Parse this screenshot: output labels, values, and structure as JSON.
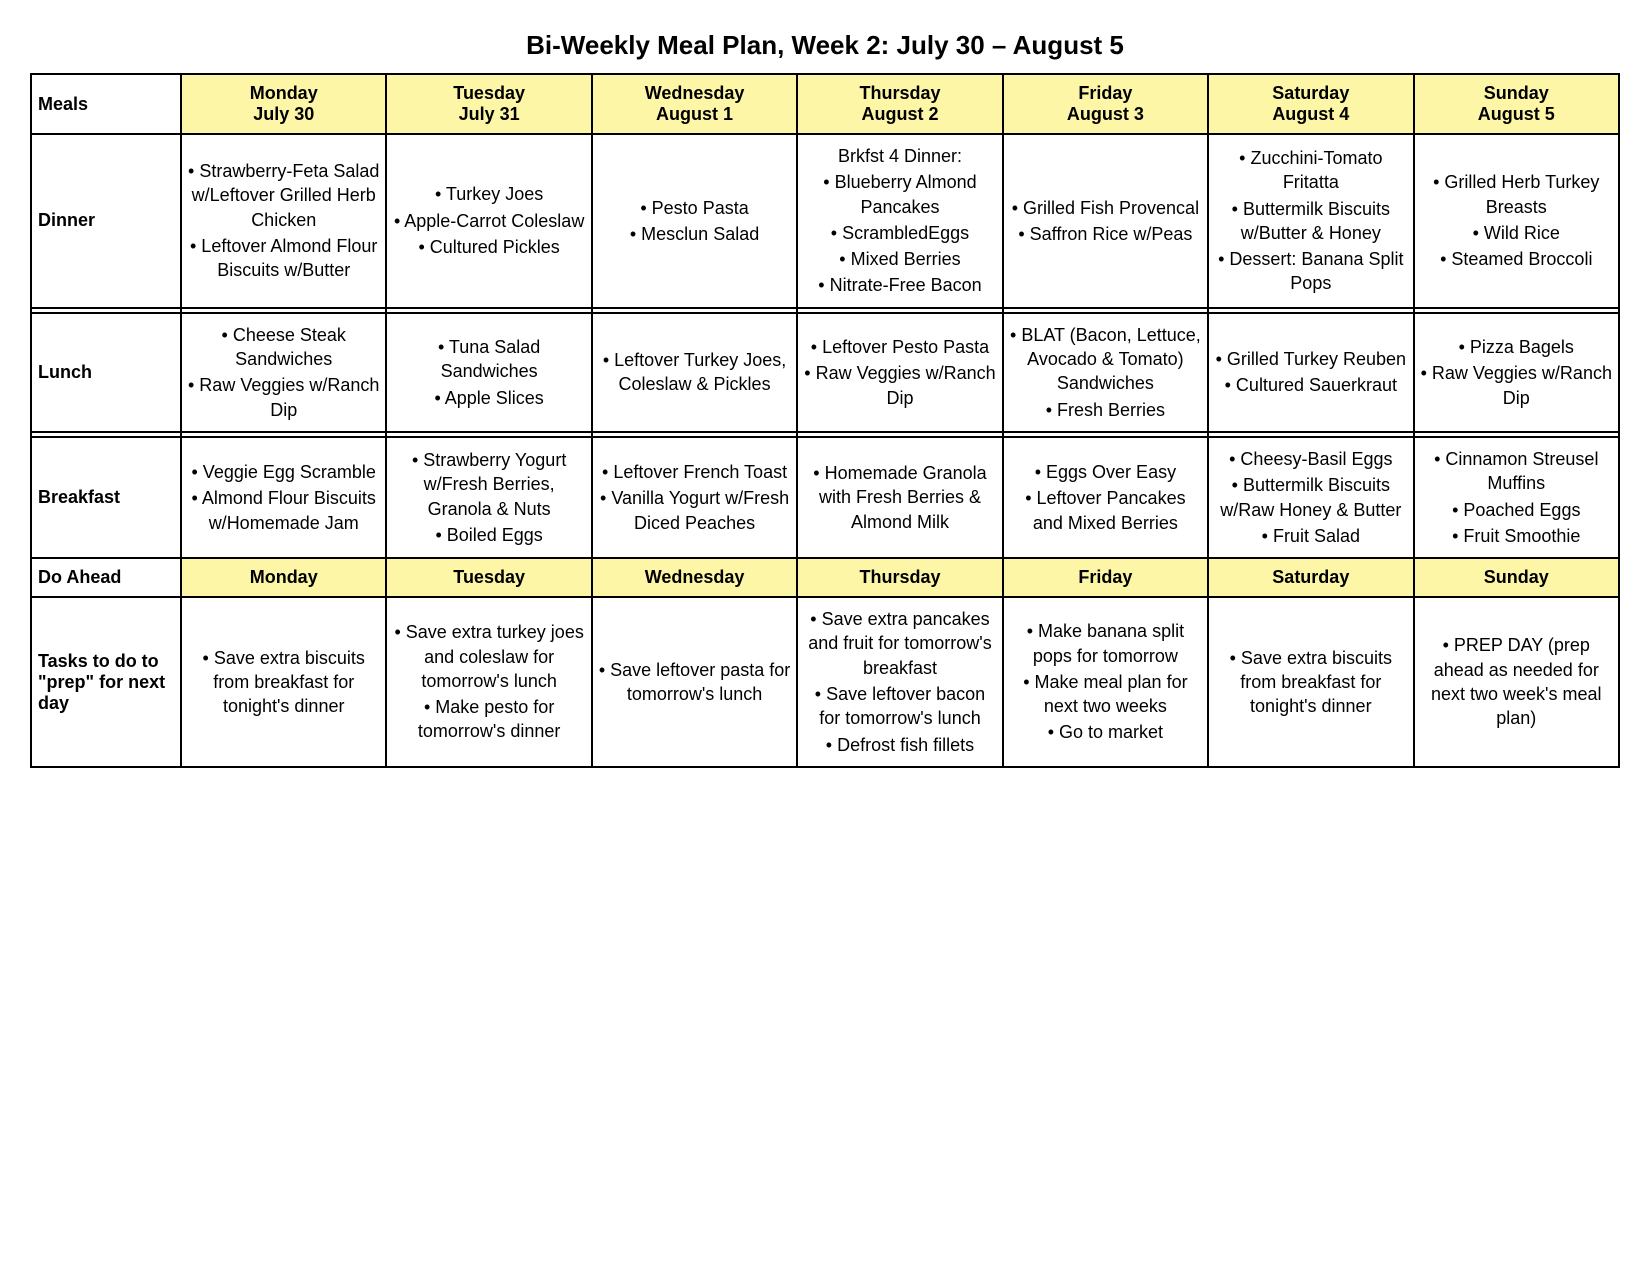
{
  "title": "Bi-Weekly Meal Plan, Week 2: July 30 – August 5",
  "colors": {
    "header_bg": "#fdf6a6",
    "border": "#000000",
    "page_bg": "#ffffff",
    "text": "#000000"
  },
  "typography": {
    "title_fontsize": 26,
    "cell_fontsize": 18,
    "font_family": "Helvetica, Arial, sans-serif"
  },
  "columns": [
    {
      "label": "Meals",
      "day_line1": "",
      "day_line2": ""
    },
    {
      "label": "Monday\nJuly 30"
    },
    {
      "label": "Tuesday\nJuly 31"
    },
    {
      "label": "Wednesday\nAugust 1"
    },
    {
      "label": "Thursday\nAugust 2"
    },
    {
      "label": "Friday\nAugust 3"
    },
    {
      "label": "Saturday\nAugust 4"
    },
    {
      "label": "Sunday\nAugust 5"
    }
  ],
  "row_labels": {
    "meals": "Meals",
    "dinner": "Dinner",
    "lunch": "Lunch",
    "breakfast": "Breakfast",
    "do_ahead": "Do Ahead",
    "tasks": "Tasks to do to \"prep\" for next day"
  },
  "do_ahead_days": [
    "Monday",
    "Tuesday",
    "Wednesday",
    "Thursday",
    "Friday",
    "Saturday",
    "Sunday"
  ],
  "dinner": [
    [
      "• Strawberry-Feta Salad w/Leftover Grilled Herb Chicken",
      "• Leftover Almond Flour Biscuits w/Butter"
    ],
    [
      "• Turkey Joes",
      "• Apple-Carrot Coleslaw",
      "• Cultured Pickles"
    ],
    [
      "• Pesto Pasta",
      "• Mesclun Salad"
    ],
    [
      "Brkfst 4 Dinner:",
      "• Blueberry Almond Pancakes",
      "• ScrambledEggs",
      "• Mixed Berries",
      "• Nitrate-Free Bacon"
    ],
    [
      "• Grilled Fish Provencal",
      "• Saffron Rice w/Peas"
    ],
    [
      "• Zucchini-Tomato Fritatta",
      "• Buttermilk Biscuits w/Butter & Honey",
      "• Dessert: Banana Split Pops"
    ],
    [
      "• Grilled Herb Turkey Breasts",
      "• Wild Rice",
      "• Steamed Broccoli"
    ]
  ],
  "lunch": [
    [
      "• Cheese Steak Sandwiches",
      "• Raw Veggies w/Ranch Dip"
    ],
    [
      "• Tuna Salad Sandwiches",
      "• Apple Slices"
    ],
    [
      "• Leftover Turkey Joes, Coleslaw & Pickles"
    ],
    [
      "• Leftover Pesto Pasta",
      "• Raw Veggies w/Ranch Dip"
    ],
    [
      "• BLAT (Bacon, Lettuce, Avocado & Tomato) Sandwiches",
      "• Fresh Berries"
    ],
    [
      "• Grilled Turkey Reuben",
      "• Cultured Sauerkraut"
    ],
    [
      "• Pizza Bagels",
      "• Raw Veggies w/Ranch Dip"
    ]
  ],
  "breakfast": [
    [
      "• Veggie Egg Scramble",
      "• Almond Flour Biscuits w/Homemade Jam"
    ],
    [
      "• Strawberry Yogurt w/Fresh Berries, Granola & Nuts",
      "• Boiled Eggs"
    ],
    [
      "• Leftover French Toast",
      "• Vanilla Yogurt w/Fresh Diced Peaches"
    ],
    [
      "• Homemade Granola with Fresh Berries & Almond Milk"
    ],
    [
      "• Eggs Over Easy",
      "• Leftover Pancakes and Mixed Berries"
    ],
    [
      "• Cheesy-Basil Eggs",
      "• Buttermilk Biscuits w/Raw Honey & Butter",
      "• Fruit Salad"
    ],
    [
      "• Cinnamon Streusel Muffins",
      "• Poached Eggs",
      "• Fruit Smoothie"
    ]
  ],
  "tasks": [
    [
      "• Save extra biscuits from breakfast for tonight's dinner"
    ],
    [
      "• Save extra turkey joes and coleslaw for tomorrow's lunch",
      "• Make pesto for tomorrow's dinner"
    ],
    [
      "• Save leftover pasta for tomorrow's lunch"
    ],
    [
      "• Save extra pancakes and fruit for tomorrow's breakfast",
      "• Save leftover bacon for tomorrow's lunch",
      "• Defrost fish fillets"
    ],
    [
      "• Make banana split pops for tomorrow",
      "• Make meal plan for next two weeks",
      "• Go to market"
    ],
    [
      "• Save extra biscuits from breakfast for tonight's dinner"
    ],
    [
      "• PREP DAY (prep ahead as needed for next two week's meal plan)"
    ]
  ]
}
